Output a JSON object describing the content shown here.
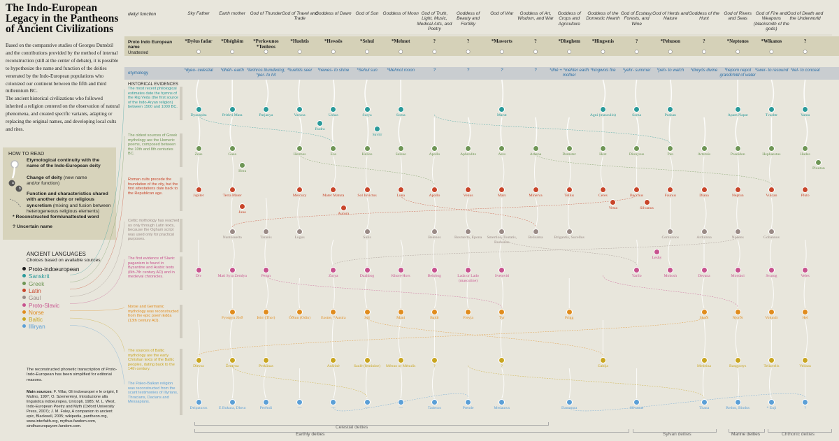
{
  "title": "The Indo-European Legacy in the Pantheons of Ancient Civilizations",
  "intro": [
    "Based on the comparative studies of Georges Dumézil and the contributions provided by the method of internal reconstruction (still at the center of debate), it is possible to hypothesize the name and function of the deities venerated by the Indo-European populations who colonized our continent between the fifth and third millennium BC.",
    "The ancient historical civilizations who followed inherited a religion centered on the observation of natural phenomena, and created specific variants, adapting or replacing the original names, and developing local cults and rites."
  ],
  "how_to_read": {
    "title": "HOW TO READ",
    "items": [
      {
        "bold": "Etymological continuity with the name of the Indo-European deity",
        "text": ""
      },
      {
        "bold": "Change of deity",
        "text": " (new name and/or function)"
      },
      {
        "bold": "Function and characteristics shared with another deity or religious syncretism",
        "text": " (mixing and fusion between heterogeneous religious elements)"
      },
      {
        "bold": "* Reconstructed form/unattested word",
        "text": ""
      },
      {
        "bold": "? Uncertain name",
        "text": ""
      }
    ],
    "markers": [
      "a",
      "b"
    ]
  },
  "languages": {
    "title": "ANCIENT LANGUAGES",
    "subtitle": "Choices based on available sources",
    "items": [
      {
        "name": "Proto-indoeuropean",
        "color": "#1c1c1c"
      },
      {
        "name": "Sanskrit",
        "color": "#2a9a9a"
      },
      {
        "name": "Greek",
        "color": "#6f9656"
      },
      {
        "name": "Latin",
        "color": "#c8452a"
      },
      {
        "name": "Gaul",
        "color": "#9a8b86"
      },
      {
        "name": "Proto-Slavic",
        "color": "#c7528e"
      },
      {
        "name": "Norse",
        "color": "#e08c1e"
      },
      {
        "name": "Baltic",
        "color": "#c9a520"
      },
      {
        "name": "Illiryan",
        "color": "#5b9fd6"
      }
    ]
  },
  "note": "The reconstructed phonetic transcription of Proto-Indo-European has been simplified for editorial reasons.",
  "sources_label": "Main sources",
  "sources": ": F. Villar, Gli indoeuropei e le origini, Il Mulino, 1997; O. Szemerényi, Introduzione alla linguistica indoeuropea, Unicopli, 1985; M. L. West, Indo-European Poetry and Myth (Oxford University Press, 2007); J. M. Foley, A companion to ancient epic, Blackwell, 2005; wikipedia, pantheon.org, www.interfaith.org, mythus.fandom.com, sindhueuropayom.fandom.com.",
  "row_labels": {
    "deity_function": "deity/ function",
    "pie_name": "Proto Indo European name",
    "unattested": "Unattested",
    "etymology": "etymology",
    "historical": "HISTORICAL EVIDENCES"
  },
  "columns": [
    {
      "func": "Sky Father",
      "pie": "*Dyêus fadar",
      "ety": "*dyeu- celestial"
    },
    {
      "func": "Earth mother",
      "pie": "*Dhéghôm",
      "ety": "*dhéh- earth"
    },
    {
      "func": "God of Thunder",
      "pie": "*Perkwunos *Tenhros",
      "ety": "*tenhros thundering; *per- to hit"
    },
    {
      "func": "God of Travel and Trade",
      "pie": "*Huehtis",
      "ety": "*huehtis seer"
    },
    {
      "func": "Goddess of Dawn",
      "pie": "*Hewsōs",
      "ety": "*hewes- to shine"
    },
    {
      "func": "God of Sun",
      "pie": "*Sehul",
      "ety": "*Sehul sun"
    },
    {
      "func": "Goddess of Moon",
      "pie": "*Mehnot",
      "ety": "*Mehnot moon"
    },
    {
      "func": "God of Truth, Light, Music, Medical Arts, and Poetry",
      "pie": "?",
      "ety": "?"
    },
    {
      "func": "Goddess of Beauty and Fertility",
      "pie": "?",
      "ety": "?"
    },
    {
      "func": "God of War",
      "pie": "*Maworts",
      "ety": "?"
    },
    {
      "func": "Goddess of Art, Wisdom, and War",
      "pie": "?",
      "ety": "?"
    },
    {
      "func": "Goddess of Crops and Agriculture",
      "pie": "*Dheghem",
      "ety": "*dhé + *méhter earth mother"
    },
    {
      "func": "Goddess of the Domestic Hearth",
      "pie": "*Hingwnis",
      "ety": "*hingwnis fire"
    },
    {
      "func": "God of Ecstasy, Forests, and Wine",
      "pie": "?",
      "ety": "*yehr- summer"
    },
    {
      "func": "God of Herds and Nature",
      "pie": "*Pehuson",
      "ety": "*peh- to watch"
    },
    {
      "func": "Goddess of the Hunt",
      "pie": "?",
      "ety": "*diwyós divine"
    },
    {
      "func": "God of Rivers and Seas",
      "pie": "*Neptonos",
      "ety": "*hepom nepot grandchild of water"
    },
    {
      "func": "God of Fire and Weapons (blacksmith of the gods)",
      "pie": "*Wlkanos",
      "ety": "*swer- to resound"
    },
    {
      "func": "God of Death and the Underworld",
      "pie": "?",
      "ety": "*kel- to conceal"
    }
  ],
  "rows": [
    {
      "lang": "Sanskrit",
      "color": "#2a9a9a",
      "desc": "The most recent philological estimates date the hymns of the Rig Veda (the first source of the Indo-Aryan religion) between 1500 and 1000 BC.",
      "nodes": [
        {
          "c": 0,
          "n": "Dyauspita"
        },
        {
          "c": 1,
          "n": "Prithvi Mata"
        },
        {
          "c": 2,
          "n": "Parjanya"
        },
        {
          "c": 3,
          "n": "Varuna"
        },
        {
          "c": 4,
          "n": "Ushas"
        },
        {
          "c": 5,
          "n": "Surya"
        },
        {
          "c": 6,
          "n": "Soma"
        },
        {
          "c": 9,
          "n": "Marut"
        },
        {
          "c": 12,
          "n": "Agni (masculin)"
        },
        {
          "c": 13,
          "n": "Soma"
        },
        {
          "c": 14,
          "n": "Pushan"
        },
        {
          "c": 16,
          "n": "Apam Napat"
        },
        {
          "c": 17,
          "n": "Tvashtr"
        },
        {
          "c": 18,
          "n": "Yama"
        }
      ],
      "extra": [
        {
          "c": 3.6,
          "dy": 20,
          "n": "Rudra"
        },
        {
          "c": 5.3,
          "dy": 28,
          "n": "Savitr"
        }
      ]
    },
    {
      "lang": "Greek",
      "color": "#6f9656",
      "desc": "The oldest sources of Greek mythology are the Homeric poems, composed between the 10th and 8th centuries BC.",
      "nodes": [
        {
          "c": 0,
          "n": "Zeus"
        },
        {
          "c": 1,
          "n": "Gaea"
        },
        {
          "c": 3,
          "n": "Hermes"
        },
        {
          "c": 4,
          "n": "Eos"
        },
        {
          "c": 5,
          "n": "Helios"
        },
        {
          "c": 6,
          "n": "Selene"
        },
        {
          "c": 7,
          "n": "Apollo"
        },
        {
          "c": 8,
          "n": "Aphrodite"
        },
        {
          "c": 9,
          "n": "Ares"
        },
        {
          "c": 10,
          "n": "Athena"
        },
        {
          "c": 11,
          "n": "Demeter"
        },
        {
          "c": 12,
          "n": "Hest"
        },
        {
          "c": 13,
          "n": "Dionysus"
        },
        {
          "c": 14,
          "n": "Pan"
        },
        {
          "c": 15,
          "n": "Artemis"
        },
        {
          "c": 16,
          "n": "Poseidon"
        },
        {
          "c": 17,
          "n": "Hephaestus"
        },
        {
          "c": 18,
          "n": "Hades"
        }
      ],
      "extra": [
        {
          "c": 1.3,
          "dy": 24,
          "n": "Hera"
        },
        {
          "c": 18.4,
          "dy": 20,
          "n": "Plouton"
        }
      ]
    },
    {
      "lang": "Latin",
      "color": "#c8452a",
      "desc": "Roman cults precede the foundation of the city, but the first attestations date back to the Republican age.",
      "nodes": [
        {
          "c": 0,
          "n": "Jupiter"
        },
        {
          "c": 1,
          "n": "Terra Mater"
        },
        {
          "c": 3,
          "n": "Mercury"
        },
        {
          "c": 4,
          "n": "Mater Matuta"
        },
        {
          "c": 5,
          "n": "Sol Invictus"
        },
        {
          "c": 6,
          "n": "Luna"
        },
        {
          "c": 7,
          "n": "Apollo"
        },
        {
          "c": 8,
          "n": "Venus"
        },
        {
          "c": 9,
          "n": "Mars"
        },
        {
          "c": 10,
          "n": "Minerva"
        },
        {
          "c": 11,
          "n": "Tellus"
        },
        {
          "c": 12,
          "n": "Ceres"
        },
        {
          "c": 13,
          "n": "Bacchus"
        },
        {
          "c": 14,
          "n": "Faunus"
        },
        {
          "c": 15,
          "n": "Diana"
        },
        {
          "c": 16,
          "n": "Neptun"
        },
        {
          "c": 17,
          "n": "Vulcan"
        },
        {
          "c": 18,
          "n": "Pluto"
        }
      ],
      "extra": [
        {
          "c": 1.3,
          "dy": 24,
          "n": "Juno"
        },
        {
          "c": 4.3,
          "dy": 26,
          "n": "Aurora"
        },
        {
          "c": 12.3,
          "dy": 18,
          "n": "Vesta"
        },
        {
          "c": 13.3,
          "dy": 18,
          "n": "Silvanus"
        }
      ]
    },
    {
      "lang": "Gaul",
      "color": "#9a8b86",
      "desc": "Celtic mythology has reached us only through Latin texts, because the Ogham script was used only for practical purposes.",
      "nodes": [
        {
          "c": 1,
          "n": "Nantosuelta"
        },
        {
          "c": 2,
          "n": "Taranis"
        },
        {
          "c": 3,
          "n": "Lugus"
        },
        {
          "c": 5,
          "n": "Sulis"
        },
        {
          "c": 7,
          "n": "Belenos"
        },
        {
          "c": 8,
          "n": "Rosmerta, Epona"
        },
        {
          "c": 9,
          "n": "Smertios, Toutatis, Rudianos"
        },
        {
          "c": 10,
          "n": "Belisama"
        },
        {
          "c": 11,
          "n": "Brigantia, Sucellus"
        },
        {
          "c": 14,
          "n": "Cernunnos"
        },
        {
          "c": 15,
          "n": "Arduinna"
        },
        {
          "c": 16,
          "n": "Nodens"
        },
        {
          "c": 17,
          "n": "Gobannus"
        }
      ],
      "extra": []
    },
    {
      "lang": "Proto-Slavic",
      "color": "#c7528e",
      "desc": "The first evidence of Slavic paganism is found in Byzantine and Arabic texts (6th-7th century AD) and in medieval chronicles.",
      "nodes": [
        {
          "c": 0,
          "n": "Div"
        },
        {
          "c": 1,
          "n": "Mati Syra Zemlya"
        },
        {
          "c": 2,
          "n": "Perun"
        },
        {
          "c": 4,
          "n": "Zorya"
        },
        {
          "c": 5,
          "n": "Dazhbog"
        },
        {
          "c": 6,
          "n": "Khors-Hors"
        },
        {
          "c": 7,
          "n": "Belobog"
        },
        {
          "c": 8,
          "n": "Lada or Lado (masculine)"
        },
        {
          "c": 9,
          "n": "Svetovid"
        },
        {
          "c": 13,
          "n": "Yarilo"
        },
        {
          "c": 14,
          "n": "Mokosh"
        },
        {
          "c": 15,
          "n": "Devana"
        },
        {
          "c": 16,
          "n": "Morskoi"
        },
        {
          "c": 17,
          "n": "Svarog"
        },
        {
          "c": 18,
          "n": "Veles"
        }
      ],
      "extra": [
        {
          "c": 13.6,
          "dy": -26,
          "n": "Leshy"
        }
      ]
    },
    {
      "lang": "Norse",
      "color": "#e08c1e",
      "desc": "Norse and Germanic mythology was reconstructed from the epic poem Edda (13th century AD).",
      "nodes": [
        {
          "c": 1,
          "n": "Fyorgyn Jörð"
        },
        {
          "c": 2,
          "n": "Þórr (Thor)"
        },
        {
          "c": 3,
          "n": "Óðinn (Odin)"
        },
        {
          "c": 4,
          "n": "Eostre, *Austra"
        },
        {
          "c": 5,
          "n": "Sól"
        },
        {
          "c": 6,
          "n": "Máni"
        },
        {
          "c": 7,
          "n": "Baldr"
        },
        {
          "c": 8,
          "n": "Freyja"
        },
        {
          "c": 9,
          "n": "Tyr"
        },
        {
          "c": 11,
          "n": "Frigg"
        },
        {
          "c": 15,
          "n": "Skaði"
        },
        {
          "c": 16,
          "n": "Njorðr"
        },
        {
          "c": 17,
          "n": "Volundr"
        },
        {
          "c": 18,
          "n": "Hel"
        }
      ],
      "extra": []
    },
    {
      "lang": "Baltic",
      "color": "#c9a520",
      "desc": "The sources of Baltic mythology are the early Christian texts of the Baltic peoples, dating back to the 14th century.",
      "nodes": [
        {
          "c": 0,
          "n": "Dievas"
        },
        {
          "c": 1,
          "n": "Žemyna"
        },
        {
          "c": 2,
          "n": "Perkūnas"
        },
        {
          "c": 4,
          "n": "Aušrinė"
        },
        {
          "c": 5,
          "n": "Saulė (feminine)"
        },
        {
          "c": 6,
          "n": "Mėnuo or Mėnulis"
        },
        {
          "c": 7,
          "n": "?"
        },
        {
          "c": 9,
          "n": "?"
        },
        {
          "c": 12,
          "n": "Gabija"
        },
        {
          "c": 15,
          "n": "Medeina"
        },
        {
          "c": 16,
          "n": "Bangpotys"
        },
        {
          "c": 17,
          "n": "Teliavelis"
        },
        {
          "c": 18,
          "n": "Velinas"
        }
      ],
      "extra": []
    },
    {
      "lang": "Illiryan",
      "color": "#5b9fd6",
      "desc": "The Paleo-Balkan religion was reconstructed from the scant testimonies of Illyrians, Thracians, Dacians and Messapians.",
      "nodes": [
        {
          "c": 0,
          "n": "Deipaturos"
        },
        {
          "c": 1,
          "n": "E Bukura, Dheut"
        },
        {
          "c": 2,
          "n": "Perëndi"
        },
        {
          "c": 3,
          "n": "—"
        },
        {
          "c": 4,
          "n": "—"
        },
        {
          "c": 5,
          "n": "—"
        },
        {
          "c": 6,
          "n": "—"
        },
        {
          "c": 7,
          "n": "Tadenos"
        },
        {
          "c": 8,
          "n": "Prende"
        },
        {
          "c": 9,
          "n": "Medaurus"
        },
        {
          "c": 11,
          "n": "Damatura"
        },
        {
          "c": 13,
          "n": "Silvanae"
        },
        {
          "c": 15,
          "n": "Thana"
        },
        {
          "c": 16,
          "n": "Redon, Bindus"
        },
        {
          "c": 17,
          "n": "* Enji"
        },
        {
          "c": 18,
          "n": "?"
        }
      ],
      "extra": []
    }
  ],
  "footer": {
    "celestial": "Celestial deities",
    "earthly": "Earthly deities",
    "sylvan": "Sylvan deities",
    "marine": "Marine deities",
    "chthonic": "Chthonic deities"
  }
}
